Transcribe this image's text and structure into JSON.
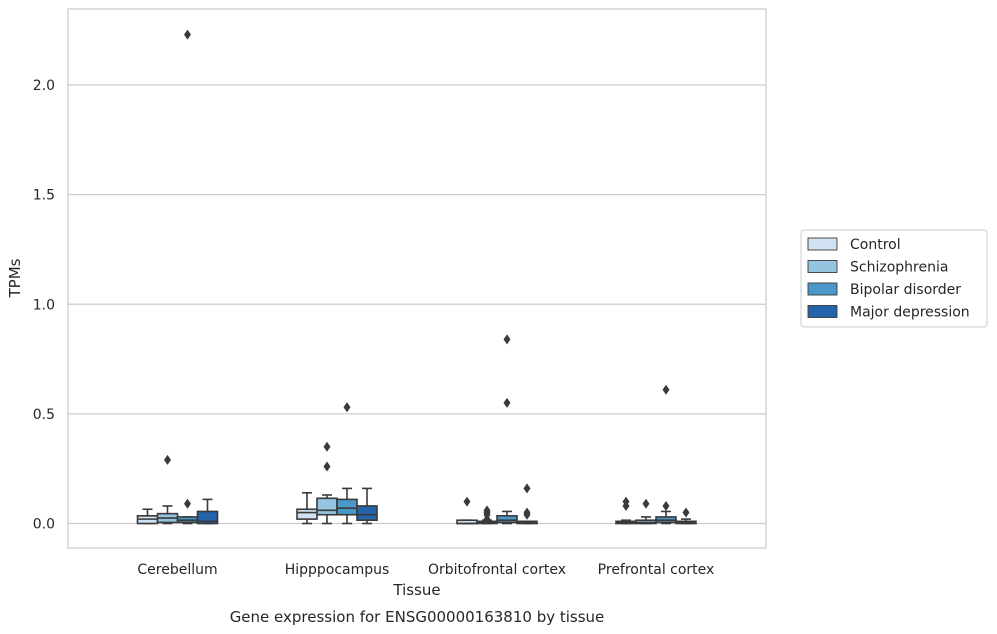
{
  "chart_data": {
    "type": "box",
    "title": "",
    "xlabel": "Tissue",
    "ylabel": "TPMs",
    "caption": "Gene expression for ENSG00000163810 by tissue",
    "ylim": [
      -0.11,
      2.37
    ],
    "yticks": [
      "0.0",
      "0.5",
      "1.0",
      "1.5",
      "2.0"
    ],
    "ytick_values": [
      0.0,
      0.5,
      1.0,
      1.5,
      2.0
    ],
    "grid": "horizontal",
    "legend_placement": "right",
    "categories": [
      "Cerebellum",
      "Hipppocampus",
      "Orbitofrontal cortex",
      "Prefrontal cortex"
    ],
    "series": [
      {
        "name": "Control",
        "color": "#d0e1f2",
        "boxes": [
          {
            "q1": 0.0,
            "median": 0.02,
            "q3": 0.035,
            "whislo": 0.0,
            "whishi": 0.065,
            "fliers": []
          },
          {
            "q1": 0.02,
            "median": 0.05,
            "q3": 0.065,
            "whislo": 0.0,
            "whishi": 0.14,
            "fliers": []
          },
          {
            "q1": 0.0,
            "median": 0.0,
            "q3": 0.015,
            "whislo": 0.0,
            "whishi": 0.015,
            "fliers": [
              0.1
            ]
          },
          {
            "q1": 0.0,
            "median": 0.005,
            "q3": 0.01,
            "whislo": 0.0,
            "whishi": 0.015,
            "fliers": [
              0.08,
              0.1
            ]
          }
        ]
      },
      {
        "name": "Schizophrenia",
        "color": "#94c4df",
        "boxes": [
          {
            "q1": 0.005,
            "median": 0.025,
            "q3": 0.045,
            "whislo": 0.0,
            "whishi": 0.08,
            "fliers": [
              0.29
            ]
          },
          {
            "q1": 0.04,
            "median": 0.06,
            "q3": 0.115,
            "whislo": 0.0,
            "whishi": 0.13,
            "fliers": [
              0.26,
              0.35
            ]
          },
          {
            "q1": 0.0,
            "median": 0.005,
            "q3": 0.01,
            "whislo": 0.0,
            "whishi": 0.015,
            "fliers": [
              0.02,
              0.04,
              0.05,
              0.06
            ]
          },
          {
            "q1": 0.0,
            "median": 0.005,
            "q3": 0.015,
            "whislo": 0.0,
            "whishi": 0.03,
            "fliers": [
              0.09
            ]
          }
        ]
      },
      {
        "name": "Bipolar disorder",
        "color": "#4a98c9",
        "boxes": [
          {
            "q1": 0.005,
            "median": 0.015,
            "q3": 0.03,
            "whislo": 0.0,
            "whishi": 0.03,
            "fliers": [
              0.09,
              2.23
            ]
          },
          {
            "q1": 0.04,
            "median": 0.07,
            "q3": 0.11,
            "whislo": 0.0,
            "whishi": 0.16,
            "fliers": [
              0.53
            ]
          },
          {
            "q1": 0.005,
            "median": 0.015,
            "q3": 0.035,
            "whislo": 0.0,
            "whishi": 0.055,
            "fliers": [
              0.55,
              0.84
            ]
          },
          {
            "q1": 0.005,
            "median": 0.015,
            "q3": 0.03,
            "whislo": 0.0,
            "whishi": 0.055,
            "fliers": [
              0.08,
              0.61
            ]
          }
        ]
      },
      {
        "name": "Major depression",
        "color": "#2464ab",
        "boxes": [
          {
            "q1": 0.0,
            "median": 0.01,
            "q3": 0.055,
            "whislo": 0.0,
            "whishi": 0.11,
            "fliers": []
          },
          {
            "q1": 0.015,
            "median": 0.04,
            "q3": 0.08,
            "whislo": 0.0,
            "whishi": 0.16,
            "fliers": []
          },
          {
            "q1": 0.0,
            "median": 0.005,
            "q3": 0.01,
            "whislo": 0.0,
            "whishi": 0.01,
            "fliers": [
              0.04,
              0.05,
              0.16
            ]
          },
          {
            "q1": 0.0,
            "median": 0.005,
            "q3": 0.01,
            "whislo": 0.0,
            "whishi": 0.02,
            "fliers": [
              0.05
            ]
          }
        ]
      }
    ]
  }
}
